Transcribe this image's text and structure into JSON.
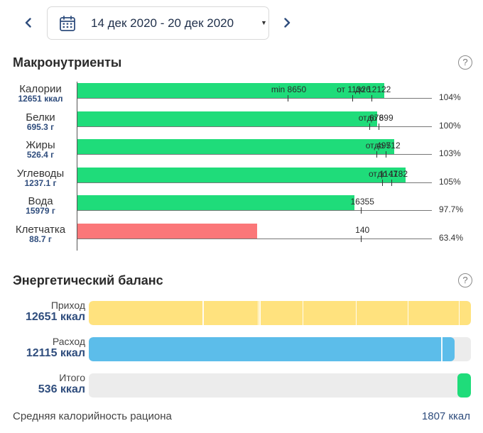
{
  "header": {
    "date_range": "14 дек 2020 - 20 дек 2020"
  },
  "macros": {
    "title": "Макронутриенты",
    "rows": [
      {
        "name": "Калории",
        "value": "12651 ккал",
        "color": "#1fdc7a",
        "fill_value": 12651,
        "ticks": [
          {
            "label": "min 8650",
            "value": 8650
          },
          {
            "label": "от 11326",
            "value": 11326
          },
          {
            "label": "до 12122",
            "value": 12122
          }
        ],
        "percent": "104%"
      },
      {
        "name": "Белки",
        "value": "695.3 г",
        "color": "#1fdc7a",
        "fill_value": 695.3,
        "ticks": [
          {
            "label": "от 678",
            "value": 678
          },
          {
            "label": "до 699",
            "value": 699
          }
        ],
        "percent": "100%"
      },
      {
        "name": "Жиры",
        "value": "526.4 г",
        "color": "#1fdc7a",
        "fill_value": 526.4,
        "ticks": [
          {
            "label": "от 497",
            "value": 497
          },
          {
            "label": "до 512",
            "value": 512
          }
        ],
        "percent": "103%"
      },
      {
        "name": "Углеводы",
        "value": "1237.1 г",
        "color": "#1fdc7a",
        "fill_value": 1237.1,
        "ticks": [
          {
            "label": "от 1147",
            "value": 1147
          },
          {
            "label": "до 1182",
            "value": 1182
          }
        ],
        "percent": "105%"
      },
      {
        "name": "Вода",
        "value": "15979 г",
        "color": "#1fdc7a",
        "fill_value": 15979,
        "ticks": [
          {
            "label": "16355",
            "value": 16355
          }
        ],
        "percent": "97.7%"
      },
      {
        "name": "Клетчатка",
        "value": "88.7 г",
        "color": "#fb7779",
        "fill_value": 88.7,
        "ticks": [
          {
            "label": "140",
            "value": 140
          }
        ],
        "percent": "63.4%"
      }
    ]
  },
  "energy": {
    "title": "Энергетический баланс",
    "income": {
      "name": "Приход",
      "value": "12651 ккал",
      "fraction": 1.0,
      "segments": [
        0.298,
        0.442,
        0.447,
        0.559,
        0.698,
        0.834,
        0.968
      ]
    },
    "expense": {
      "name": "Расход",
      "value": "12115 ккал",
      "fraction": 0.958,
      "segments": [
        0.922
      ]
    },
    "total": {
      "name": "Итого",
      "value": "536 ккал",
      "fraction_start": 0.958,
      "fraction": 0.042
    }
  },
  "footer": {
    "label": "Средняя калорийность рациона",
    "value": "1807 ккал"
  },
  "colors": {
    "green": "#1fdc7a",
    "red": "#fb7779",
    "yellow": "#ffe27e",
    "blue": "#5cbdea",
    "accent": "#2f4d7d"
  }
}
